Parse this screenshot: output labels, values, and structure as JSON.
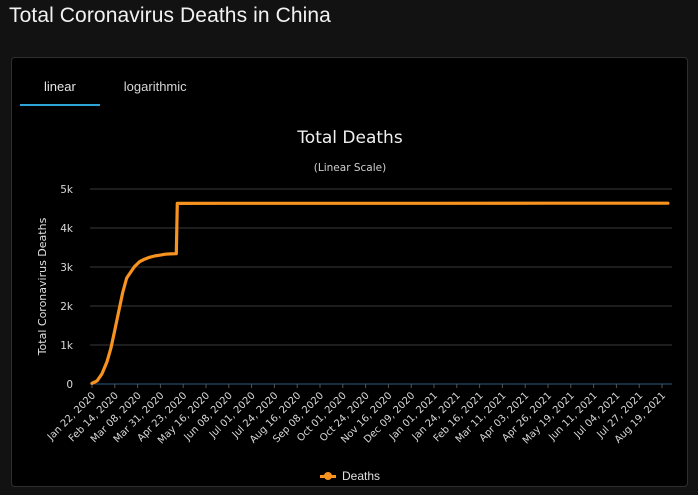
{
  "page": {
    "title": "Total Coronavirus Deaths in China"
  },
  "tabs": [
    {
      "label": "linear",
      "active": true
    },
    {
      "label": "logarithmic",
      "active": false
    }
  ],
  "colors": {
    "series": "#f7931e",
    "tab_accent": "#2fa4d6",
    "grid": "#3a3a3a"
  },
  "chart_data": {
    "type": "line",
    "title": "Total Deaths",
    "subtitle": "(Linear Scale)",
    "xlabel": "",
    "ylabel": "Total Coronavirus Deaths",
    "ylim": [
      0,
      5000
    ],
    "y_ticks": [
      0,
      1000,
      2000,
      3000,
      4000,
      5000
    ],
    "y_tick_labels": [
      "0",
      "1k",
      "2k",
      "3k",
      "4k",
      "5k"
    ],
    "x_tick_labels": [
      "Jan 22, 2020",
      "Feb 14, 2020",
      "Mar 08, 2020",
      "Mar 31, 2020",
      "Apr 23, 2020",
      "May 16, 2020",
      "Jun 08, 2020",
      "Jul 01, 2020",
      "Jul 24, 2020",
      "Aug 16, 2020",
      "Sep 08, 2020",
      "Oct 01, 2020",
      "Oct 24, 2020",
      "Nov 16, 2020",
      "Dec 09, 2020",
      "Jan 01, 2021",
      "Jan 24, 2021",
      "Feb 16, 2021",
      "Mar 11, 2021",
      "Apr 03, 2021",
      "Apr 26, 2021",
      "May 19, 2021",
      "Jun 11, 2021",
      "Jul 04, 2021",
      "Jul 27, 2021",
      "Aug 19, 2021"
    ],
    "grid": true,
    "legend_position": "bottom-center",
    "series": [
      {
        "name": "Deaths",
        "color": "#f7931e",
        "points": [
          [
            "2020-01-22",
            17
          ],
          [
            "2020-01-27",
            80
          ],
          [
            "2020-02-01",
            259
          ],
          [
            "2020-02-06",
            563
          ],
          [
            "2020-02-10",
            908
          ],
          [
            "2020-02-14",
            1380
          ],
          [
            "2020-02-18",
            1868
          ],
          [
            "2020-02-22",
            2345
          ],
          [
            "2020-02-26",
            2717
          ],
          [
            "2020-03-01",
            2870
          ],
          [
            "2020-03-05",
            3012
          ],
          [
            "2020-03-10",
            3136
          ],
          [
            "2020-03-15",
            3199
          ],
          [
            "2020-03-20",
            3248
          ],
          [
            "2020-03-25",
            3281
          ],
          [
            "2020-03-31",
            3305
          ],
          [
            "2020-04-05",
            3329
          ],
          [
            "2020-04-10",
            3336
          ],
          [
            "2020-04-16",
            3342
          ],
          [
            "2020-04-17",
            4632
          ],
          [
            "2020-06-01",
            4634
          ],
          [
            "2021-01-01",
            4634
          ],
          [
            "2021-05-01",
            4636
          ],
          [
            "2021-08-25",
            4636
          ]
        ]
      }
    ]
  }
}
